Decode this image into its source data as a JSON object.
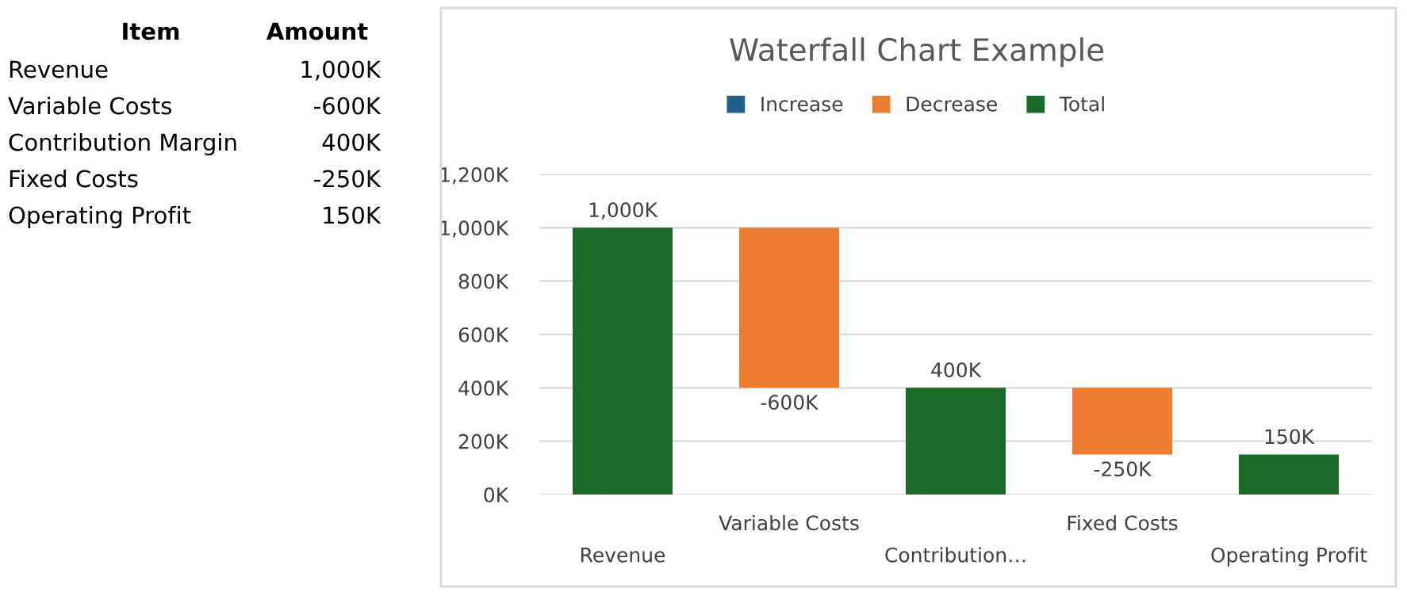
{
  "chart_data": [
    {
      "type": "other",
      "annotations": [
        "Item",
        "Amount",
        "Revenue",
        "1,000K",
        "Variable Costs",
        "-600K",
        "Contribution Margin",
        "400K",
        "Fixed Costs",
        "-250K",
        "Operating Profit",
        "150K"
      ]
    },
    {
      "type": "bar",
      "title": "Waterfall Chart Example",
      "categories": [
        "Revenue",
        "Variable Costs",
        "Contribution…",
        "Fixed Costs",
        "Operating Profit"
      ],
      "series": [
        {
          "name": "Increase",
          "color": "#1f5f8b",
          "values": [
            null,
            null,
            null,
            null,
            null
          ]
        },
        {
          "name": "Decrease",
          "color": "#ed7d31",
          "values": [
            null,
            -600,
            null,
            -250,
            null
          ],
          "base": [
            null,
            1000,
            null,
            400,
            null
          ],
          "value_labels": [
            null,
            "-600K",
            null,
            "-250K",
            null
          ]
        },
        {
          "name": "Total",
          "color": "#1a6b28",
          "values": [
            1000,
            null,
            400,
            null,
            150
          ],
          "value_labels": [
            "1,000K",
            null,
            "400K",
            null,
            "150K"
          ]
        }
      ],
      "ylim": [
        0,
        1200
      ],
      "yticks": [
        {
          "value": 0,
          "label": "0K"
        },
        {
          "value": 200,
          "label": "200K"
        },
        {
          "value": 400,
          "label": "400K"
        },
        {
          "value": 600,
          "label": "600K"
        },
        {
          "value": 800,
          "label": "800K"
        },
        {
          "value": 1000,
          "label": "1,000K"
        },
        {
          "value": 1200,
          "label": "1,200K"
        }
      ],
      "grid": "y",
      "legend": "top"
    }
  ]
}
